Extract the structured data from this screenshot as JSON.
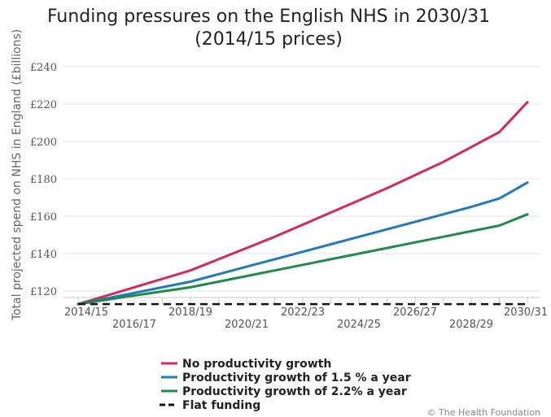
{
  "chart_data": {
    "type": "line",
    "title": [
      "Funding pressures on the English NHS in 2030/31",
      "(2014/15 prices)"
    ],
    "ylabel": "Total projected spend on NHS in England (£billions)",
    "xlabel": "",
    "ylim": [
      110,
      240
    ],
    "yticks": [
      120,
      140,
      160,
      180,
      200,
      220,
      240
    ],
    "ytick_labels": [
      "£120",
      "£140",
      "£160",
      "£180",
      "£200",
      "£220",
      "£240"
    ],
    "x": [
      2014,
      2015,
      2016,
      2017,
      2018,
      2019,
      2020,
      2021,
      2022,
      2023,
      2024,
      2025,
      2026,
      2027,
      2028,
      2029,
      2030
    ],
    "xticks": [
      {
        "year": 2014,
        "label": "2014/15",
        "row": 1
      },
      {
        "year": 2016,
        "label": "2016/17",
        "row": 2
      },
      {
        "year": 2018,
        "label": "2018/19",
        "row": 1
      },
      {
        "year": 2020,
        "label": "2020/21",
        "row": 2
      },
      {
        "year": 2022,
        "label": "2022/23",
        "row": 1
      },
      {
        "year": 2024,
        "label": "2024/25",
        "row": 2
      },
      {
        "year": 2026,
        "label": "2026/27",
        "row": 1
      },
      {
        "year": 2028,
        "label": "2028/29",
        "row": 2
      },
      {
        "year": 2030,
        "label": "2030/31",
        "row": 1
      }
    ],
    "grid": true,
    "legend_position": "bottom-left",
    "series": [
      {
        "name": "No productivity growth",
        "color": "#d8285e",
        "dash": false,
        "values": [
          113,
          117.5,
          122,
          126.5,
          131,
          137,
          143,
          149,
          155.5,
          162,
          168.5,
          175,
          182,
          189,
          197,
          205,
          221
        ]
      },
      {
        "name": "Productivity growth of 1.5 % a year",
        "color": "#1f7ac0",
        "dash": false,
        "values": [
          113,
          116,
          119,
          122,
          125,
          129,
          133,
          137,
          141,
          145,
          149,
          153,
          157,
          161,
          165,
          169.5,
          178
        ]
      },
      {
        "name": "Productivity growth of 2.2% a year",
        "color": "#1e8a4c",
        "dash": false,
        "values": [
          113,
          115.3,
          117.6,
          119.8,
          122,
          125,
          128,
          131,
          134,
          137,
          140,
          143,
          146,
          149,
          152,
          155,
          161
        ]
      },
      {
        "name": "Flat funding",
        "color": "#111111",
        "dash": true,
        "values": [
          113,
          113,
          113,
          113,
          113,
          113,
          113,
          113,
          113,
          113,
          113,
          113,
          113,
          113,
          113,
          113,
          113
        ]
      }
    ]
  },
  "credit": "© The Health Foundation"
}
